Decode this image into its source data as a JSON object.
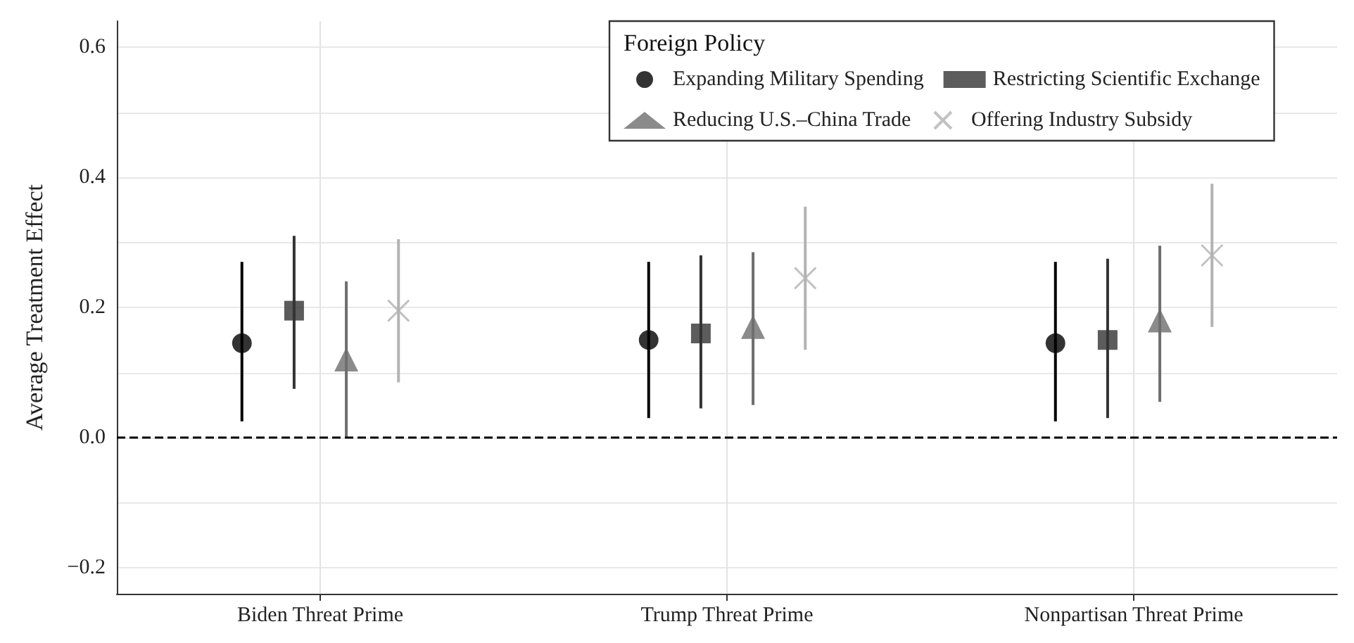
{
  "chart_data": {
    "type": "scatter",
    "ylabel": "Average Treatment Effect",
    "legend_title": "Foreign Policy",
    "legend": "top right",
    "grid": true,
    "categories": [
      "Biden Threat Prime",
      "Trump Threat Prime",
      "Nonpartisan Threat Prime"
    ],
    "ylim": [
      -0.24,
      0.64
    ],
    "yticks": [
      {
        "value": -0.2,
        "label": "−0.2"
      },
      {
        "value": -0.1,
        "label": null
      },
      {
        "value": 0,
        "label": "0.0"
      },
      {
        "value": 0.1,
        "label": null
      },
      0.2,
      {
        "value": 0.3,
        "label": null
      },
      0.4,
      {
        "value": 0.5,
        "label": null
      },
      0.6
    ],
    "ref_lines": [
      {
        "axis": "y",
        "value": 0,
        "label": null,
        "color": "#000000",
        "line_style": "dashed"
      }
    ],
    "series": [
      {
        "name": "Expanding Military Spending",
        "color": "#000000",
        "marker": "circle",
        "values": [
          0.145,
          0.15,
          0.145
        ],
        "errors": [
          [
            0.025,
            0.27
          ],
          [
            0.03,
            0.27
          ],
          [
            0.025,
            0.27
          ]
        ]
      },
      {
        "name": "Restricting Scientific Exchange",
        "color": "#333333",
        "marker": "square",
        "values": [
          0.195,
          0.16,
          0.15
        ],
        "errors": [
          [
            0.075,
            0.31
          ],
          [
            0.045,
            0.28
          ],
          [
            0.03,
            0.275
          ]
        ]
      },
      {
        "name": "Reducing U.S.–China Trade",
        "color": "#6e6e6e",
        "marker": "triangle",
        "values": [
          0.12,
          0.17,
          0.18
        ],
        "errors": [
          [
            0,
            0.24
          ],
          [
            0.05,
            0.285
          ],
          [
            0.055,
            0.295
          ]
        ]
      },
      {
        "name": "Offering Industry Subsidy",
        "color": "#b3b3b3",
        "marker": "cross",
        "values": [
          0.195,
          0.245,
          0.28
        ],
        "errors": [
          [
            0.085,
            0.305
          ],
          [
            0.135,
            0.355
          ],
          [
            0.17,
            0.39
          ]
        ]
      }
    ]
  }
}
